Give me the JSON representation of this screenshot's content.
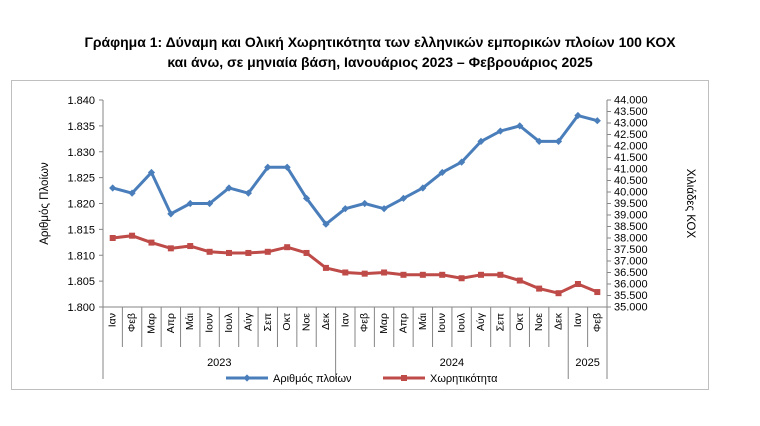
{
  "title": {
    "line1": "Γράφημα 1: Δύναμη και Ολική Χωρητικότητα των ελληνικών εμπορικών πλοίων 100 ΚΟΧ",
    "line2": "και άνω, σε μηνιαία βάση, Ιανουάριος 2023 – Φεβρουάριος 2025"
  },
  "chart_data": {
    "type": "line",
    "title": "Γράφημα 1: Δύναμη και Ολική Χωρητικότητα των ελληνικών εμπορικών πλοίων 100 ΚΟΧ και άνω, σε μηνιαία βάση, Ιανουάριος 2023 – Φεβρουάριος 2025",
    "ylabel": "Αριθμός Πλοίων",
    "y2label": "Χιλιάδες ΚΟΧ",
    "categories": [
      "Ιαν",
      "Φεβ",
      "Μαρ",
      "Απρ",
      "Μάι",
      "Ιουν",
      "Ιουλ",
      "Αύγ",
      "Σεπ",
      "Οκτ",
      "Νοε",
      "Δεκ",
      "Ιαν",
      "Φεβ",
      "Μαρ",
      "Απρ",
      "Μάι",
      "Ιουν",
      "Ιουλ",
      "Αύγ",
      "Σεπ",
      "Οκτ",
      "Νοε",
      "Δεκ",
      "Ιαν",
      "Φεβ"
    ],
    "years": [
      {
        "label": "2023",
        "start": 0,
        "end": 11
      },
      {
        "label": "2024",
        "start": 12,
        "end": 23
      },
      {
        "label": "2025",
        "start": 24,
        "end": 25
      }
    ],
    "ylim": [
      1.8,
      1.84
    ],
    "yticks": [
      "1.800",
      "1.805",
      "1.810",
      "1.815",
      "1.820",
      "1.825",
      "1.830",
      "1.835",
      "1.840"
    ],
    "y2lim": [
      35000,
      44000
    ],
    "y2ticks": [
      "35.000",
      "35.500",
      "36.000",
      "36.500",
      "37.000",
      "37.500",
      "38.000",
      "38.500",
      "39.000",
      "39.500",
      "40.000",
      "40.500",
      "41.000",
      "41.500",
      "42.000",
      "42.500",
      "43.000",
      "43.500",
      "44.000"
    ],
    "series": [
      {
        "name": "Αριθμός πλοίων",
        "axis": "left",
        "color": "#4a7ebb",
        "marker": "diamond",
        "values": [
          1.823,
          1.822,
          1.826,
          1.818,
          1.82,
          1.82,
          1.823,
          1.822,
          1.827,
          1.827,
          1.821,
          1.816,
          1.819,
          1.82,
          1.819,
          1.821,
          1.823,
          1.826,
          1.828,
          1.832,
          1.834,
          1.835,
          1.832,
          1.832,
          1.837,
          1.836
        ]
      },
      {
        "name": "Χωρητικότητα",
        "axis": "right",
        "color": "#be4b48",
        "marker": "square",
        "values": [
          38000,
          38100,
          37800,
          37550,
          37650,
          37400,
          37350,
          37350,
          37400,
          37600,
          37350,
          36700,
          36500,
          36450,
          36500,
          36400,
          36400,
          36400,
          36250,
          36400,
          36400,
          36150,
          35800,
          35600,
          36000,
          35650
        ]
      }
    ],
    "legend_position": "bottom",
    "grid": false
  }
}
